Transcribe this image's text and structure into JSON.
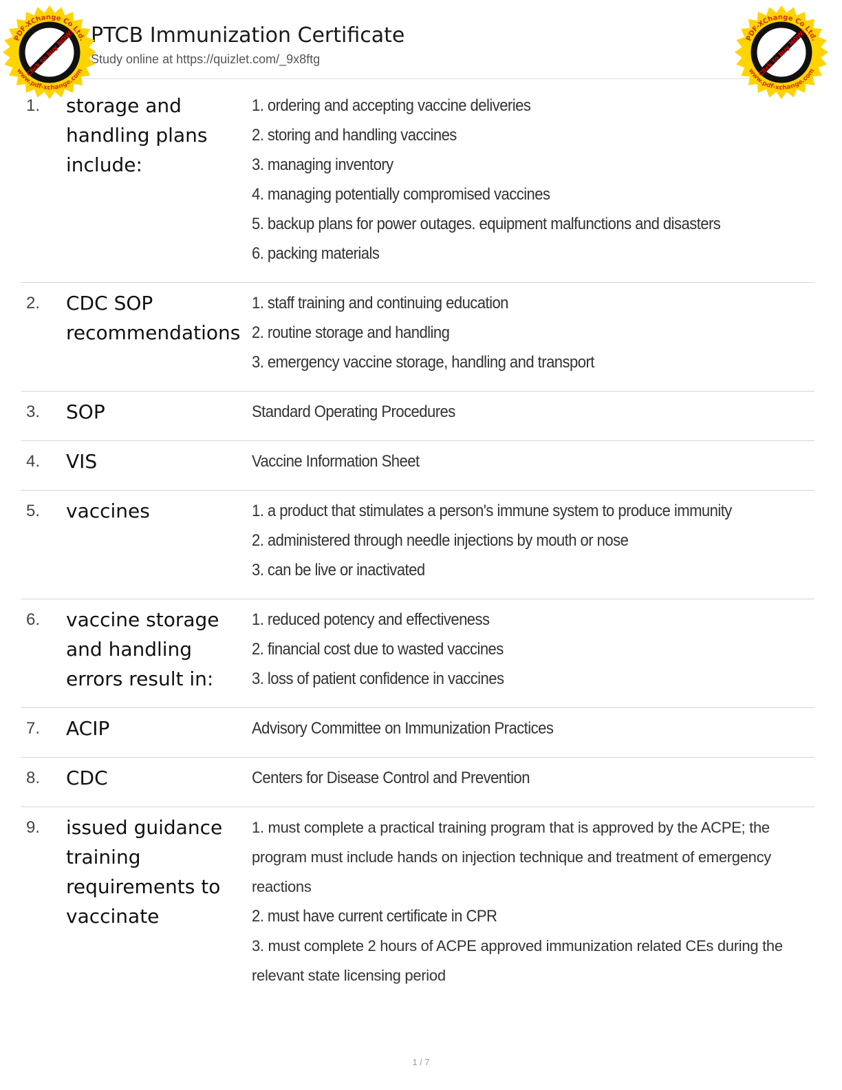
{
  "header": {
    "title": "PTCB Immunization Certificate",
    "subtitle": "Study online at https://quizlet.com/_9x8ftg"
  },
  "watermark": {
    "text_top": "PDF-XChange Co Ltd.",
    "text_middle": "Click to buy NOW!",
    "text_bottom": "www.pdf-xchange.com",
    "color": "#ffd400"
  },
  "rows": [
    {
      "num": "1.",
      "term": "storage and handling plans include:",
      "lines": [
        "1. ordering and accepting vaccine deliveries",
        "2. storing and handling vaccines",
        "3. managing inventory",
        "4. managing potentially compromised vaccines",
        "5. backup plans for power outages. equipment malfunctions and disasters",
        "6. packing materials"
      ]
    },
    {
      "num": "2.",
      "term": "CDC SOP recommendations",
      "lines": [
        "1. staff training and continuing education",
        "2. routine storage and handling",
        "3. emergency vaccine storage, handling and transport"
      ]
    },
    {
      "num": "3.",
      "term": "SOP",
      "lines": [
        "Standard Operating Procedures"
      ]
    },
    {
      "num": "4.",
      "term": "VIS",
      "lines": [
        "Vaccine Information Sheet"
      ]
    },
    {
      "num": "5.",
      "term": "vaccines",
      "lines": [
        "1. a product that stimulates a person's immune system to produce immunity",
        "2. administered through needle injections by mouth or nose",
        "3. can be live or inactivated"
      ]
    },
    {
      "num": "6.",
      "term": "vaccine storage and handling errors result in:",
      "lines": [
        "1. reduced potency and effectiveness",
        "2. financial cost due to wasted vaccines",
        "3. loss of patient confidence in vaccines"
      ]
    },
    {
      "num": "7.",
      "term": "ACIP",
      "lines": [
        "Advisory Committee on Immunization Practices"
      ]
    },
    {
      "num": "8.",
      "term": "CDC",
      "lines": [
        "Centers for Disease Control and Prevention"
      ]
    },
    {
      "num": "9.",
      "term": "issued guidance training requirements to vaccinate",
      "lines": [
        "1. must complete a practical training program that is approved by the ACPE; the program must include hands on injection technique and treatment of emergency reactions",
        "2. must have current certificate in CPR",
        "3. must complete 2 hours of ACPE approved immunization related CEs during the relevant state licensing period"
      ]
    }
  ],
  "footer": {
    "page": "1 / 7"
  }
}
